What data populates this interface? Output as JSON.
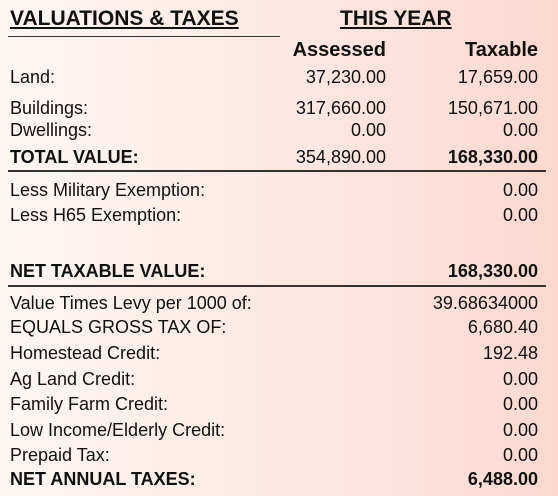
{
  "header": {
    "title": "VALUATIONS & TAXES",
    "period": "THIS YEAR"
  },
  "columns": {
    "assessed": "Assessed",
    "taxable": "Taxable"
  },
  "rows": [
    {
      "label": "Land:",
      "assessed": "37,230.00",
      "taxable": "17,659.00"
    },
    {
      "label": "Buildings:",
      "assessed": "317,660.00",
      "taxable": "150,671.00"
    },
    {
      "label": "Dwellings:",
      "assessed": "0.00",
      "taxable": "0.00"
    },
    {
      "label": "TOTAL VALUE:",
      "assessed": "354,890.00",
      "taxable": "168,330.00"
    },
    {
      "label": "Less Military Exemption:",
      "taxable": "0.00"
    },
    {
      "label": "Less H65 Exemption:",
      "taxable": "0.00"
    },
    {
      "label": "NET TAXABLE VALUE:",
      "taxable": "168,330.00"
    },
    {
      "label": "Value Times Levy per 1000 of:",
      "taxable": "39.68634000"
    },
    {
      "label": "EQUALS GROSS TAX OF:",
      "taxable": "6,680.40"
    },
    {
      "label": "Homestead Credit:",
      "taxable": "192.48"
    },
    {
      "label": "Ag Land Credit:",
      "taxable": "0.00"
    },
    {
      "label": "Family Farm Credit:",
      "taxable": "0.00"
    },
    {
      "label": "Low Income/Elderly Credit:",
      "taxable": "0.00"
    },
    {
      "label": "Prepaid Tax:",
      "taxable": "0.00"
    },
    {
      "label": "NET ANNUAL TAXES:",
      "taxable": "6,488.00"
    }
  ]
}
